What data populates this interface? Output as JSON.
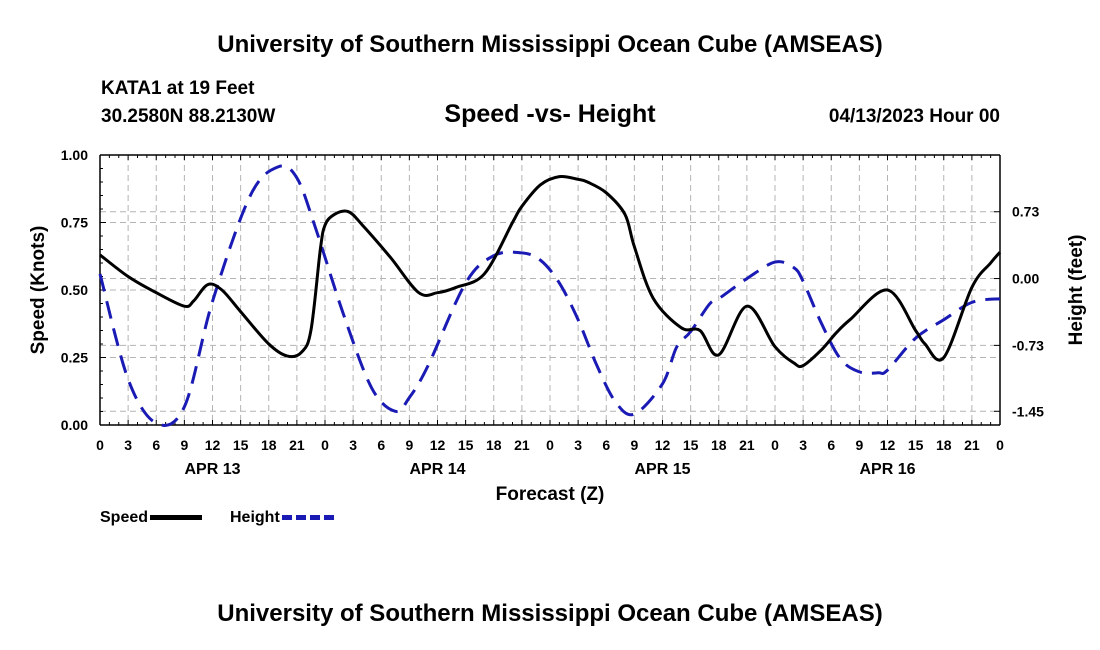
{
  "header": {
    "top_title": "University of Southern Mississippi Ocean Cube (AMSEAS)",
    "bottom_title": "University of Southern Mississippi Ocean Cube (AMSEAS)",
    "station_line": "KATA1 at 19 Feet",
    "coords_line": "30.2580N  88.2130W",
    "date_hour": "04/13/2023 Hour 00"
  },
  "colors": {
    "speed": "#000000",
    "height": "#1a1ab4",
    "grid": "#b4b4b4"
  },
  "chart_data": {
    "type": "line",
    "title": "Speed -vs- Height",
    "xlabel": "Forecast (Z)",
    "ylabel": "Speed (Knots)",
    "y2label": "Height (feet)",
    "ylim": [
      0,
      1.0
    ],
    "y2lim": [
      -1.6,
      1.35
    ],
    "yticks": [
      "0.00",
      "0.25",
      "0.50",
      "0.75",
      "1.00"
    ],
    "yticks_values": [
      0,
      0.25,
      0.5,
      0.75,
      1.0
    ],
    "y2ticks": [
      "0.73",
      "0.00",
      "-0.73",
      "-1.45"
    ],
    "y2ticks_values": [
      0.73,
      0.0,
      -0.73,
      -1.45
    ],
    "xlim": [
      0,
      96
    ],
    "xtick_hours": [
      0,
      3,
      6,
      9,
      12,
      15,
      18,
      21,
      24,
      27,
      30,
      33,
      36,
      39,
      42,
      45,
      48,
      51,
      54,
      57,
      60,
      63,
      66,
      69,
      72,
      75,
      78,
      81,
      84,
      87,
      90,
      93,
      96
    ],
    "xtick_labels": [
      "0",
      "3",
      "6",
      "9",
      "12",
      "15",
      "18",
      "21",
      "0",
      "3",
      "6",
      "9",
      "12",
      "15",
      "18",
      "21",
      "0",
      "3",
      "6",
      "9",
      "12",
      "15",
      "18",
      "21",
      "0",
      "3",
      "6",
      "9",
      "12",
      "15",
      "18",
      "21",
      "0"
    ],
    "date_labels": [
      {
        "label": "APR 13",
        "hour": 12
      },
      {
        "label": "APR 14",
        "hour": 36
      },
      {
        "label": "APR 15",
        "hour": 60
      },
      {
        "label": "APR 16",
        "hour": 84
      }
    ],
    "series": [
      {
        "name": "Speed",
        "axis": "left",
        "style": "solid",
        "x": [
          0,
          3,
          6,
          9,
          10,
          11.5,
          13,
          15,
          18,
          20,
          21.5,
          22.5,
          23.5,
          24,
          25,
          26.5,
          28,
          31,
          34,
          36,
          38,
          41,
          44,
          45,
          47,
          49,
          51,
          52,
          54,
          56,
          57,
          59,
          62,
          64,
          66,
          69,
          72,
          74,
          75,
          77,
          78.5,
          80,
          84,
          87,
          88,
          90,
          93,
          95,
          96
        ],
        "values": [
          0.63,
          0.55,
          0.49,
          0.44,
          0.46,
          0.52,
          0.5,
          0.42,
          0.3,
          0.255,
          0.27,
          0.35,
          0.65,
          0.74,
          0.78,
          0.79,
          0.74,
          0.62,
          0.49,
          0.49,
          0.51,
          0.56,
          0.75,
          0.81,
          0.89,
          0.92,
          0.91,
          0.9,
          0.86,
          0.78,
          0.66,
          0.47,
          0.36,
          0.35,
          0.26,
          0.44,
          0.29,
          0.23,
          0.22,
          0.28,
          0.34,
          0.39,
          0.5,
          0.35,
          0.3,
          0.25,
          0.51,
          0.6,
          0.64
        ]
      },
      {
        "name": "Height",
        "axis": "right",
        "style": "dashed",
        "x": [
          0,
          3,
          6,
          9,
          12,
          16,
          19,
          21,
          23,
          26,
          29,
          31.5,
          33,
          35,
          39,
          42,
          45,
          47,
          49,
          51,
          53,
          55,
          57,
          60,
          61.5,
          63,
          65,
          66,
          69,
          72,
          74,
          75,
          77,
          79,
          81,
          83,
          84,
          87,
          90,
          93,
          96
        ],
        "values": [
          0.05,
          -1.1,
          -1.58,
          -1.4,
          -0.25,
          0.9,
          1.22,
          1.1,
          0.55,
          -0.4,
          -1.2,
          -1.45,
          -1.3,
          -0.95,
          -0.05,
          0.25,
          0.28,
          0.2,
          -0.05,
          -0.45,
          -0.95,
          -1.35,
          -1.48,
          -1.15,
          -0.75,
          -0.58,
          -0.28,
          -0.22,
          0.0,
          0.18,
          0.12,
          -0.03,
          -0.5,
          -0.88,
          -1.02,
          -1.03,
          -1.0,
          -0.65,
          -0.45,
          -0.26,
          -0.22
        ]
      }
    ],
    "legend": [
      {
        "label": "Speed",
        "style": "solid"
      },
      {
        "label": "Height",
        "style": "dashed"
      }
    ]
  }
}
